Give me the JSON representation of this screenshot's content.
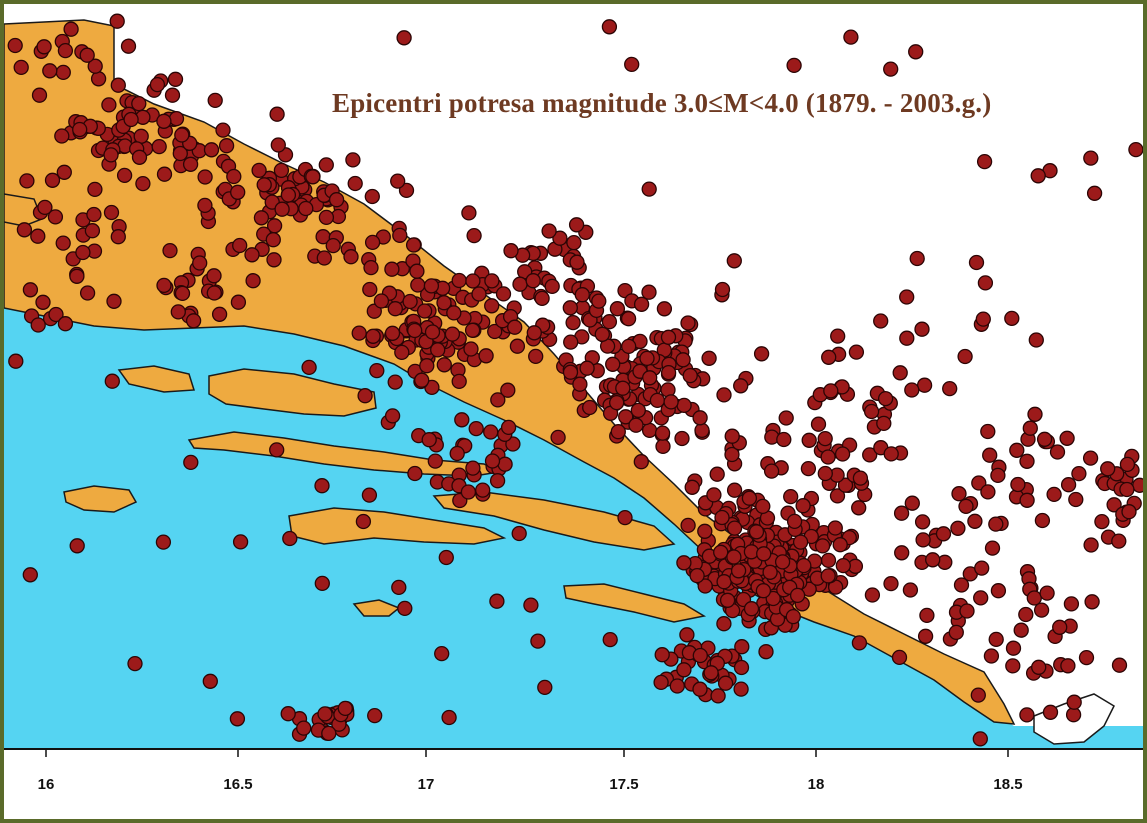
{
  "title": "Epicentri potresa magnitude 3.0≤M<4.0 (1879. - 2003.g.)",
  "x_axis": {
    "ticks": [
      "16",
      "16.5",
      "17",
      "17.5",
      "18",
      "18.5"
    ]
  },
  "colors": {
    "sea": "#55d4f2",
    "land": "#eeaa40",
    "epicenter_fill": "#9c1a1a",
    "epicenter_stroke": "#2b0505",
    "coast": "#1a1a1a",
    "frame": "#5a6b2a",
    "title": "#6e3a22"
  },
  "marker": {
    "shape": "circle",
    "meaning": "earthquake epicenter"
  }
}
